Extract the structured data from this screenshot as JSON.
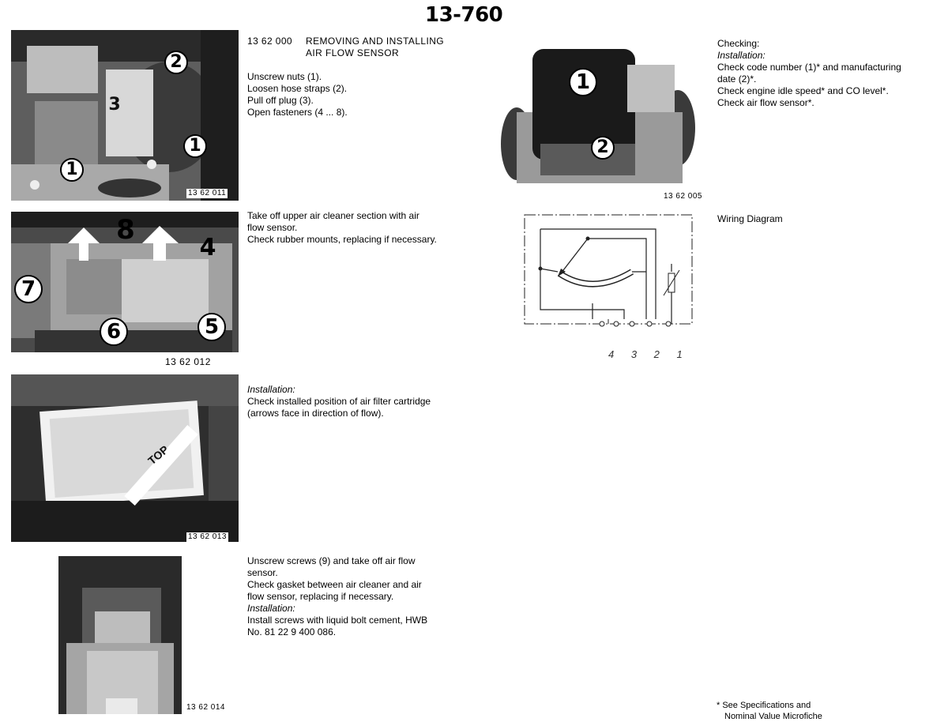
{
  "page": {
    "number": "13-760"
  },
  "photos": [
    {
      "ref": "13 62 011",
      "callouts": [
        "2",
        "3",
        "1",
        "1"
      ]
    },
    {
      "ref": "13 62 012",
      "callouts": [
        "8",
        "4",
        "7",
        "6",
        "5"
      ],
      "label_top": ""
    },
    {
      "ref": "13 62 013",
      "filter_label": "TOP"
    },
    {
      "ref": "13 62 014"
    },
    {
      "ref": "13 62 005",
      "callouts": [
        "1",
        "2"
      ]
    }
  ],
  "heading": {
    "code": "13 62 000",
    "title_line1": "REMOVING AND INSTALLING",
    "title_line2": "AIR FLOW SENSOR"
  },
  "step1": {
    "lines": [
      "Unscrew nuts (1).",
      "Loosen hose straps (2).",
      "Pull off plug (3).",
      "Open fasteners (4 ... 8)."
    ]
  },
  "step2": {
    "lines": [
      "Take off upper air cleaner section with air",
      "flow sensor.",
      "Check rubber mounts, replacing if necessary."
    ]
  },
  "step3": {
    "installation_label": "Installation:",
    "lines": [
      "Check installed position of air filter cartridge",
      "(arrows face in direction of flow)."
    ]
  },
  "step4": {
    "lines": [
      "Unscrew screws (9) and take off air flow",
      "sensor.",
      "Check gasket between air cleaner and air",
      "flow sensor, replacing if necessary."
    ],
    "installation_label": "Installation:",
    "install_lines": [
      "Install screws with liquid bolt cement, HWB",
      "No. 81 22 9 400 086."
    ]
  },
  "checking": {
    "title": "Checking:",
    "installation_label": "Installation:",
    "lines": [
      "Check code number (1)* and manufacturing",
      "date (2)*.",
      "Check engine idle speed* and CO level*.",
      "Check air flow sensor*."
    ]
  },
  "wiring": {
    "label": "Wiring Diagram",
    "terminals": "4 3 2 1"
  },
  "footnote": {
    "line1": "* See Specifications and",
    "line2": "Nominal Value Microfiche"
  }
}
